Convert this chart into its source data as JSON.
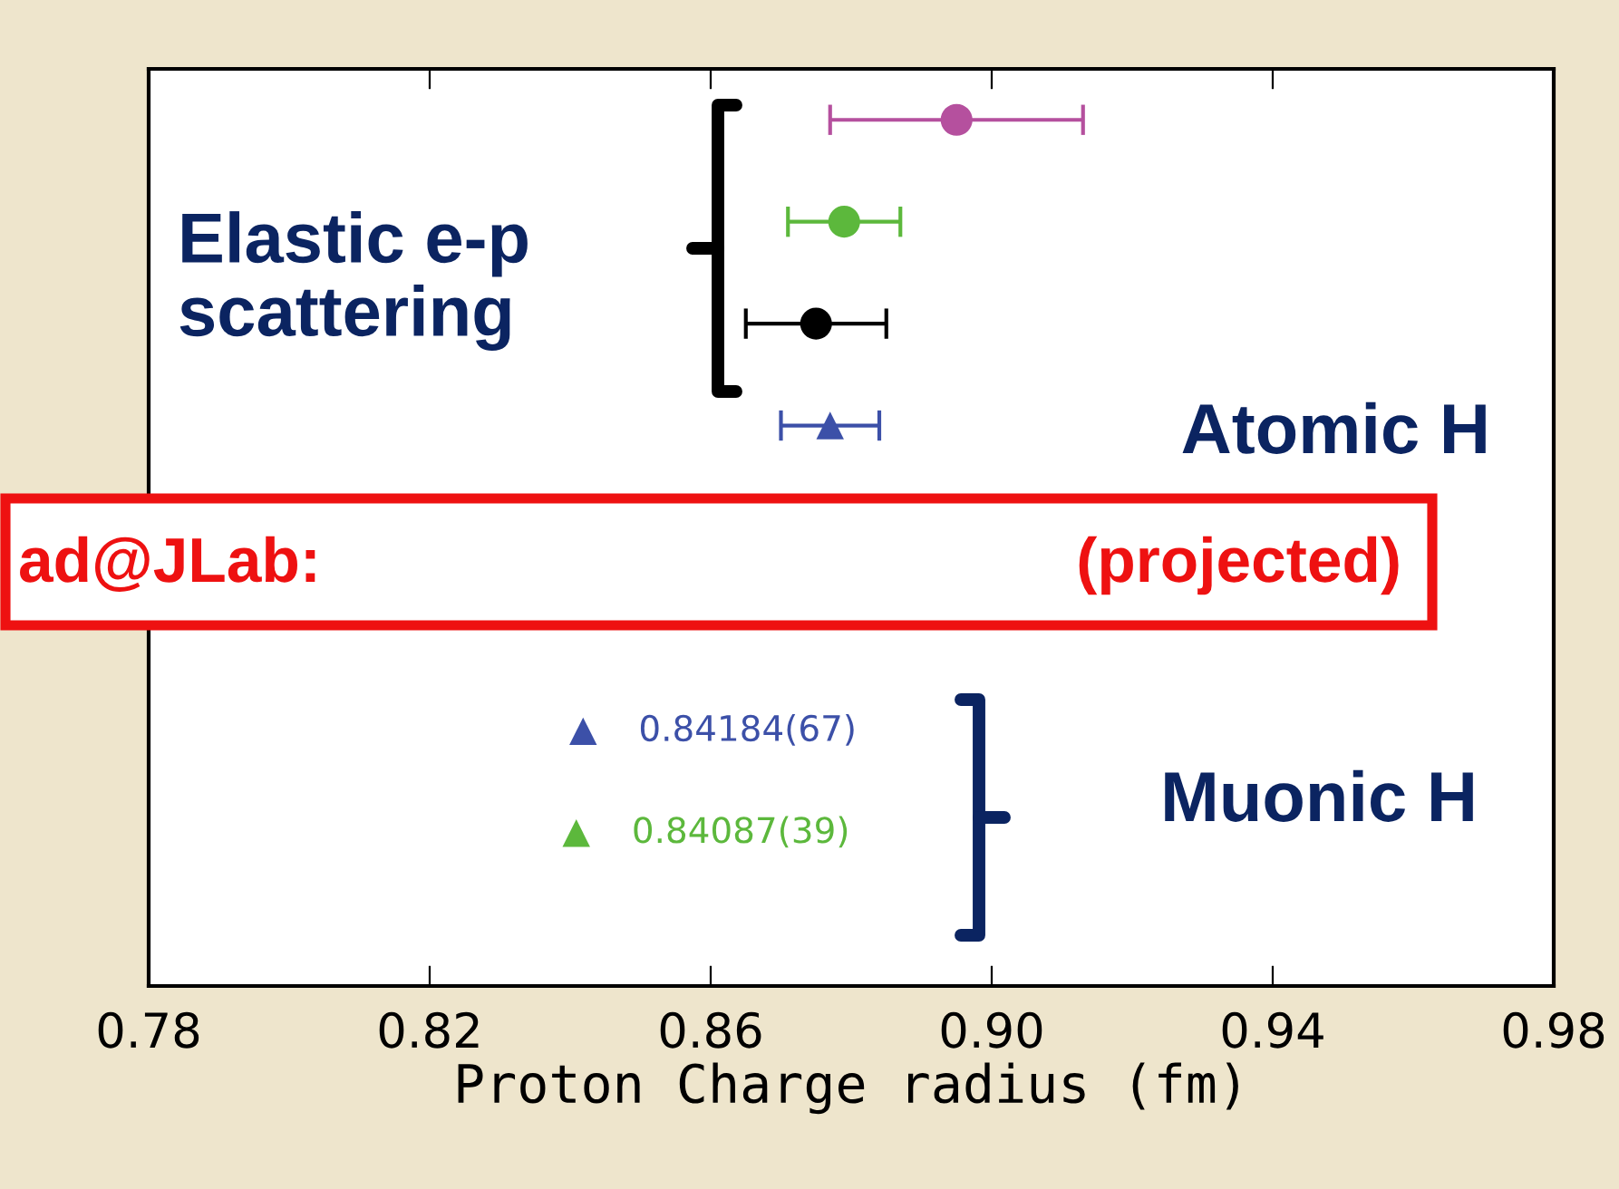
{
  "chart_data": {
    "type": "scatter",
    "orientation": "horizontal",
    "xlabel": "Proton Charge radius (fm)",
    "categories": [
      null,
      null,
      null,
      null,
      null,
      null,
      null,
      null,
      null
    ],
    "series": [
      {
        "marker": "circle",
        "values": [
          0.895,
          0.879,
          0.875,
          null,
          null,
          null,
          null,
          null,
          null
        ],
        "errors": [
          0.018,
          0.008,
          0.01,
          null,
          null,
          null,
          null,
          null,
          null
        ],
        "colors": [
          "#b5509e",
          "#5cb83c",
          "#000000",
          null,
          null,
          null,
          null,
          null,
          null
        ]
      },
      {
        "marker": "triangle",
        "values": [
          null,
          null,
          null,
          0.877,
          null,
          null,
          0.84184,
          0.84087,
          null
        ],
        "errors": [
          null,
          null,
          null,
          0.007,
          null,
          null,
          null,
          null,
          null
        ],
        "colors": [
          null,
          null,
          null,
          "#3c50a8",
          null,
          null,
          "#3c50a8",
          "#5cb83c",
          null
        ],
        "value_labels": [
          null,
          null,
          null,
          null,
          null,
          null,
          "0.84184(67)",
          "0.84087(39)",
          null
        ]
      }
    ],
    "xlim": [
      0.78,
      0.98
    ],
    "xticks": [
      0.78,
      0.82,
      0.86,
      {
        "value": 0.9,
        "label": "0.90"
      },
      0.94,
      0.98
    ],
    "tick_labels": "x",
    "grid": false,
    "legend": false,
    "annotations": [
      "Elastic e-p\nscattering",
      "Atomic H",
      "Muonic H",
      "ad@JLab:",
      "(projected)"
    ]
  }
}
